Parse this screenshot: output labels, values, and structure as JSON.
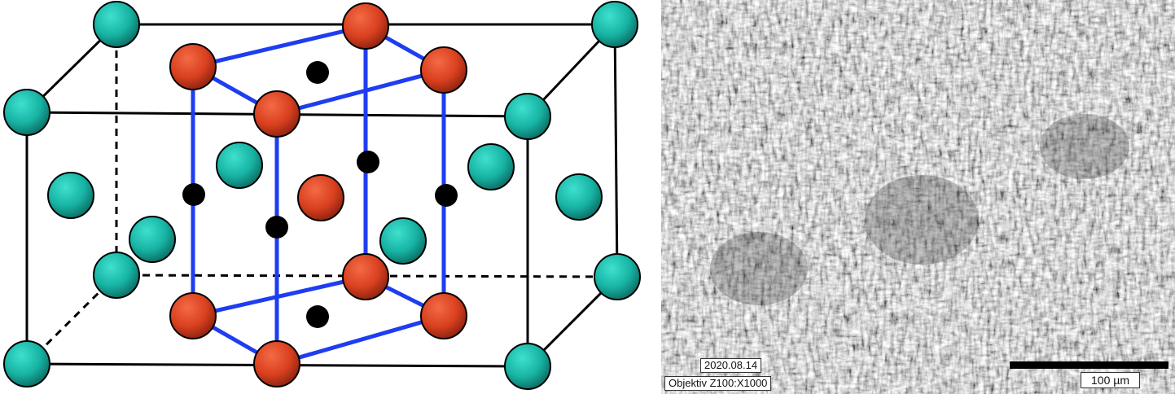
{
  "colors": {
    "teal_atom": "#17b3a3",
    "red_atom": "#d9401f",
    "interstitial": "#000000",
    "hcp_edge": "#1f3df0",
    "cell_edge": "#000000",
    "background": "#ffffff"
  },
  "micrograph": {
    "date_label": "2020.08.14",
    "objective_label": "Objektiv Z100:X1000",
    "scale_bar_label": "100 µm",
    "scale_bar_length_um": 100
  }
}
